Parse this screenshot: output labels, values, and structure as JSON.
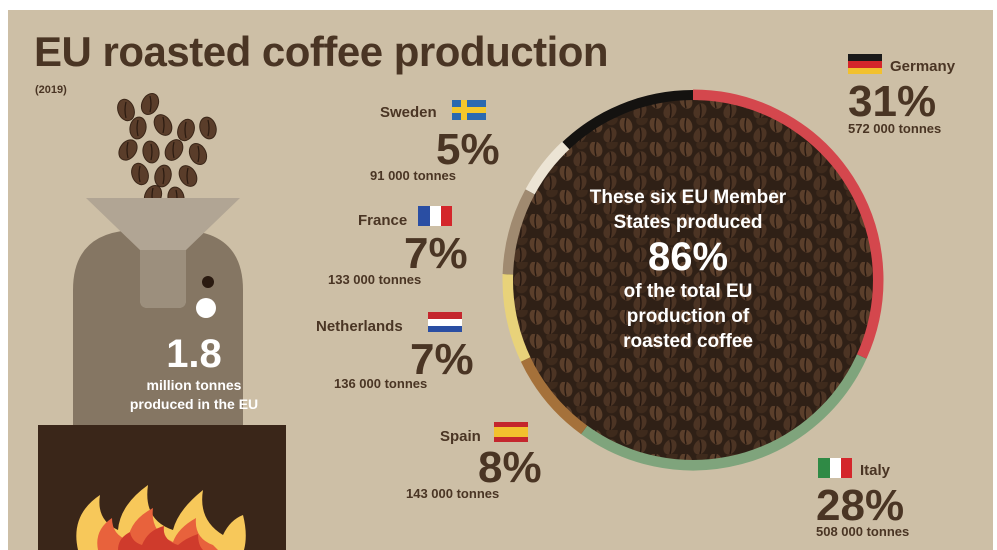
{
  "header": {
    "title": "EU roasted coffee production",
    "year": "(2019)"
  },
  "total": {
    "value": "1.8",
    "label_line1": "million tonnes",
    "label_line2": "produced in the EU"
  },
  "center": {
    "line1": "These six EU Member",
    "line2": "States produced",
    "value": "86%",
    "line3": "of the total EU",
    "line4": "production of",
    "line5": "roasted coffee"
  },
  "countries": {
    "germany": {
      "name": "Germany",
      "pct": "31%",
      "tonnes": "572 000 tonnes"
    },
    "italy": {
      "name": "Italy",
      "pct": "28%",
      "tonnes": "508 000 tonnes"
    },
    "spain": {
      "name": "Spain",
      "pct": "8%",
      "tonnes": "143 000 tonnes"
    },
    "netherlands": {
      "name": "Netherlands",
      "pct": "7%",
      "tonnes": "136 000 tonnes"
    },
    "france": {
      "name": "France",
      "pct": "7%",
      "tonnes": "133 000 tonnes"
    },
    "sweden": {
      "name": "Sweden",
      "pct": "5%",
      "tonnes": "91 000 tonnes"
    }
  },
  "colors": {
    "background": "#cdbfa6",
    "text": "#4a3524",
    "germany": "#d4474d",
    "italy": "#7fa47c",
    "spain": "#a5713a",
    "netherlands": "#e8d27a",
    "france": "#a08a70",
    "sweden": "#ece4d4",
    "other": "#141210"
  },
  "chart_data": {
    "type": "pie",
    "title": "EU roasted coffee production",
    "subtitle": "(2019)",
    "unit": "tonnes",
    "total": 1800000,
    "categories": [
      "Germany",
      "Italy",
      "Spain",
      "Netherlands",
      "France",
      "Sweden"
    ],
    "values": [
      572000,
      508000,
      143000,
      136000,
      133000,
      91000
    ],
    "percentages": [
      31,
      28,
      8,
      7,
      7,
      5
    ],
    "combined_share_percent": 86
  }
}
